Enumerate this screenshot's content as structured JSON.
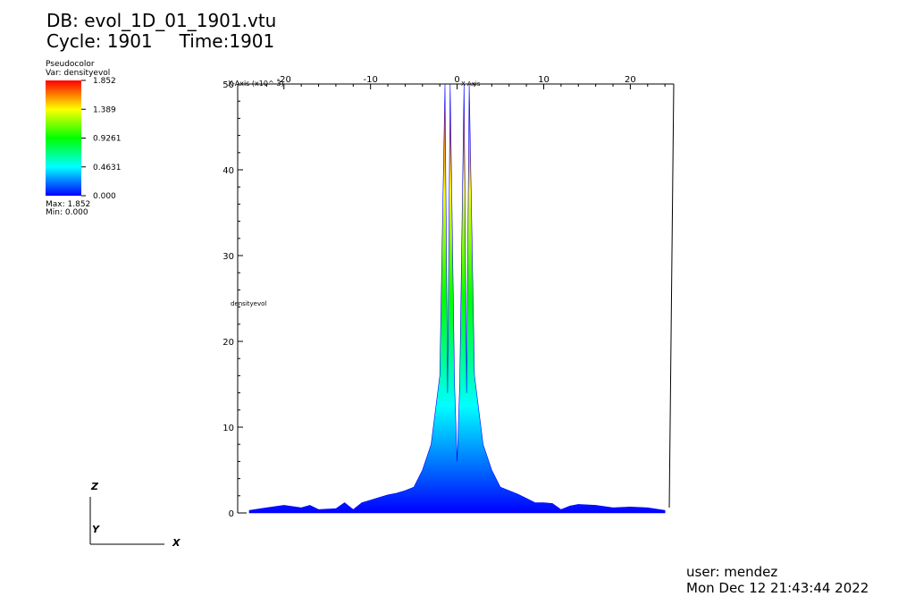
{
  "header": {
    "db_label": "DB: evol_1D_01_1901.vtu",
    "cycle_label": "Cycle: 1901",
    "time_label": "Time:1901"
  },
  "legend": {
    "plot_type": "Pseudocolor",
    "variable": "Var: densityevol",
    "ticks": [
      "1.852",
      "1.389",
      "0.9261",
      "0.4631",
      "0.000"
    ],
    "max_label": "Max:  1.852",
    "min_label": "Min:  0.000",
    "colormap": [
      "#0000ff",
      "#00ffff",
      "#00ff00",
      "#ffff00",
      "#ff0000"
    ]
  },
  "footer": {
    "user": "user: mendez",
    "timestamp": "Mon Dec 12 21:43:44 2022"
  },
  "axes_triad": {
    "z": "Z",
    "y": "Y",
    "x": "X"
  },
  "chart_data": {
    "type": "area",
    "x_tick_labels": [
      "-20",
      "-10",
      "0",
      "10",
      "20"
    ],
    "x_ticks": [
      -20,
      -10,
      0,
      10,
      20
    ],
    "y_tick_labels": [
      "0",
      "10",
      "20",
      "30",
      "40",
      "50"
    ],
    "y_ticks": [
      0,
      10,
      20,
      30,
      40,
      50
    ],
    "xlim": [
      -24,
      24.5
    ],
    "ylim": [
      0,
      50
    ],
    "x_axis_title": "X-Axis (x10^-3)",
    "x_axis_note": "X-Axis",
    "y_axis_title": "densityevol",
    "color_range": [
      0,
      1.852
    ],
    "colored_by": "densityevol",
    "series": [
      {
        "x": [
          -24,
          -22,
          -20,
          -18,
          -17,
          -16,
          -14,
          -13,
          -12,
          -11,
          -10,
          -9,
          -8,
          -7,
          -6,
          -5,
          -4,
          -3,
          -2,
          -1.4,
          -1.1,
          -0.8,
          -0.3,
          0,
          0.3,
          0.8,
          1.1,
          1.4,
          2,
          3,
          4,
          5,
          6,
          7,
          8,
          9,
          10,
          11,
          12,
          13,
          14,
          16,
          18,
          20,
          22,
          24
        ],
        "y": [
          0.3,
          0.6,
          0.9,
          0.6,
          0.9,
          0.4,
          0.5,
          1.2,
          0.4,
          1.2,
          1.5,
          1.8,
          2.1,
          2.3,
          2.6,
          3.0,
          5.0,
          8.0,
          16.0,
          50,
          14.0,
          50,
          15.0,
          6.0,
          15.0,
          50,
          14.0,
          50,
          16.0,
          8.0,
          5.0,
          3.0,
          2.6,
          2.2,
          1.7,
          1.2,
          1.2,
          1.1,
          0.4,
          0.8,
          1.0,
          0.9,
          0.6,
          0.7,
          0.6,
          0.3
        ]
      }
    ]
  }
}
